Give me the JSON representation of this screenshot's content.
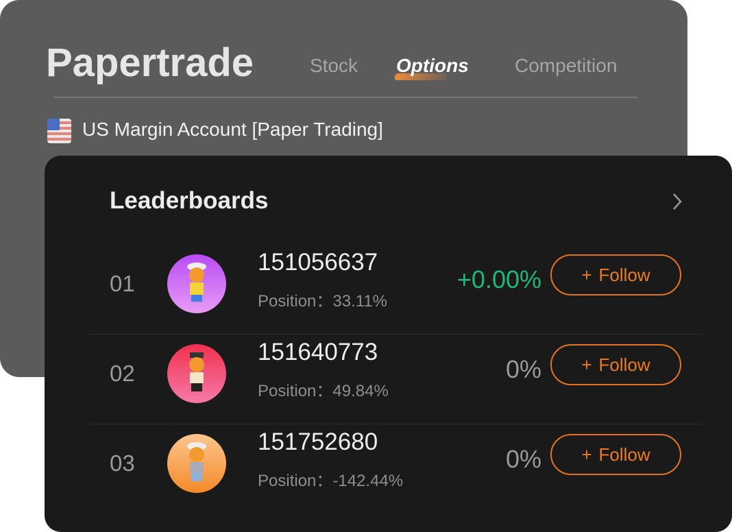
{
  "header": {
    "title": "Papertrade",
    "tabs": [
      {
        "label": "Stock"
      },
      {
        "label": "Options",
        "active": true
      },
      {
        "label": "Competition"
      }
    ],
    "account": "US Margin Account [Paper Trading]",
    "accent": "#f08a3c"
  },
  "leaderboard": {
    "title": "Leaderboards",
    "rows": [
      {
        "rank": "01",
        "user_id": "151056637",
        "position_label": "Position：",
        "position": "33.11%",
        "return": "+0.00%",
        "follow": "Follow",
        "avatar_color": "#c65bf0"
      },
      {
        "rank": "02",
        "user_id": "151640773",
        "position_label": "Position：",
        "position": "49.84%",
        "return": "0%",
        "follow": "Follow",
        "avatar_color": "#f0456a"
      },
      {
        "rank": "03",
        "user_id": "151752680",
        "position_label": "Position：",
        "position": "-142.44%",
        "return": "0%",
        "follow": "Follow",
        "avatar_color": "#f59a45"
      }
    ],
    "positive_color": "#1fb77a",
    "follow_color": "#e8731f"
  }
}
